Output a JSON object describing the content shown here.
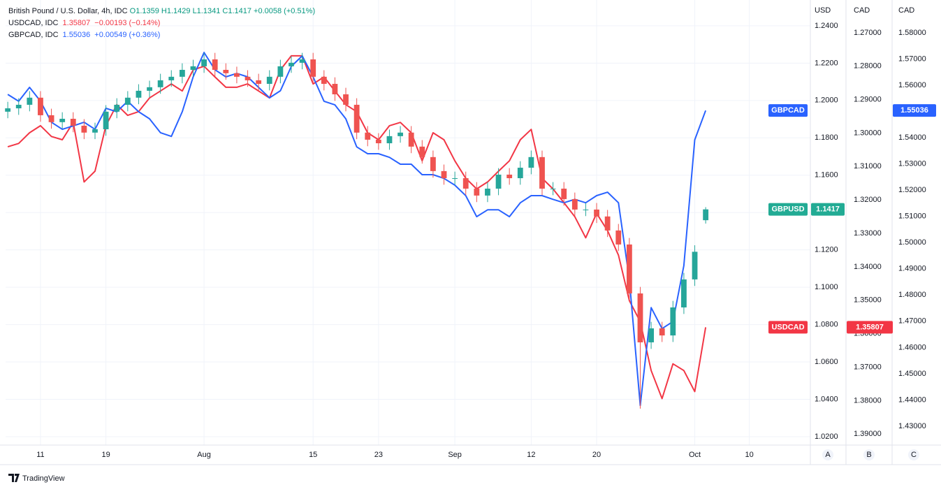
{
  "chart_data": {
    "type": "candlestick",
    "title": "British Pound / U.S. Dollar, 4h, IDC",
    "legend_stats": [
      "O1.1359",
      "H1.1429",
      "L1.1341",
      "C1.1417",
      "+0.0058 (+0.51%)"
    ],
    "symbol": "GBPUSD",
    "up_color": "#26a69a",
    "down_color": "#ef5350",
    "tag_color": "#22ab94",
    "x": [
      -3,
      -2,
      -1,
      0,
      1,
      2,
      3,
      4,
      5,
      6,
      7,
      8,
      9,
      10,
      11,
      12,
      13,
      14,
      15,
      16,
      17,
      18,
      19,
      20,
      21,
      22,
      23,
      24,
      25,
      26,
      27,
      28,
      29,
      30,
      31,
      32,
      33,
      34,
      35,
      36,
      37,
      38,
      39,
      40,
      41,
      42,
      43,
      44,
      45,
      46,
      47,
      48,
      49,
      50,
      51,
      52,
      53,
      54,
      55,
      56,
      57,
      58,
      59,
      60,
      61
    ],
    "open": [
      1.194,
      1.1958,
      1.1977,
      1.2015,
      1.1921,
      1.1884,
      1.1902,
      1.1865,
      1.1828,
      1.1846,
      1.194,
      1.1977,
      1.2015,
      1.2052,
      1.2071,
      1.2108,
      1.2127,
      1.2164,
      1.2183,
      1.222,
      1.2164,
      1.2146,
      1.2127,
      1.2108,
      1.2089,
      1.2127,
      1.2183,
      1.2202,
      1.222,
      1.2127,
      1.2089,
      1.2033,
      1.1977,
      1.1828,
      1.179,
      1.1771,
      1.1809,
      1.1828,
      1.1753,
      1.1697,
      1.1622,
      1.1584,
      1.1584,
      1.1528,
      1.1491,
      1.1528,
      1.1603,
      1.1584,
      1.164,
      1.1697,
      1.1528,
      1.1528,
      1.1472,
      1.1416,
      1.1416,
      1.1379,
      1.1304,
      1.1229,
      1.0967,
      1.0705,
      1.078,
      1.0742,
      1.0892,
      1.1042,
      1.1359
    ],
    "high": [
      1.1993,
      1.2012,
      1.205,
      1.205,
      1.1956,
      1.1937,
      1.1937,
      1.19,
      1.1881,
      1.1975,
      1.2012,
      1.205,
      1.2087,
      1.2106,
      1.2143,
      1.2162,
      1.2199,
      1.2218,
      1.2255,
      1.2255,
      1.2199,
      1.2181,
      1.2162,
      1.2143,
      1.2162,
      1.2218,
      1.2237,
      1.2255,
      1.2255,
      1.2162,
      1.2124,
      1.2068,
      1.2012,
      1.1863,
      1.1825,
      1.1844,
      1.1863,
      1.1863,
      1.1788,
      1.1732,
      1.1657,
      1.1619,
      1.1619,
      1.1563,
      1.1563,
      1.1638,
      1.1638,
      1.1675,
      1.1732,
      1.1732,
      1.1563,
      1.1563,
      1.1507,
      1.1451,
      1.1451,
      1.1414,
      1.1339,
      1.1264,
      1.1002,
      1.0815,
      1.0815,
      1.0927,
      1.1077,
      1.1225,
      1.1429
    ],
    "low": [
      1.1905,
      1.1923,
      1.1942,
      1.1886,
      1.1849,
      1.1849,
      1.183,
      1.1793,
      1.1793,
      1.1811,
      1.1905,
      1.1942,
      1.198,
      1.2017,
      1.2036,
      1.2073,
      1.2092,
      1.2129,
      1.2148,
      1.2129,
      1.2111,
      1.2092,
      1.2073,
      1.2054,
      1.2054,
      1.2092,
      1.2148,
      1.2167,
      1.2092,
      1.2054,
      1.1998,
      1.1942,
      1.1793,
      1.1755,
      1.1736,
      1.1736,
      1.1774,
      1.1718,
      1.1662,
      1.1587,
      1.1549,
      1.1549,
      1.1493,
      1.1456,
      1.1456,
      1.1493,
      1.1549,
      1.1549,
      1.1605,
      1.1493,
      1.1493,
      1.1437,
      1.1381,
      1.1381,
      1.1344,
      1.1269,
      1.1194,
      1.0932,
      1.035,
      1.067,
      1.0707,
      1.0707,
      1.0857,
      1.1007,
      1.1341
    ],
    "close": [
      1.1958,
      1.1977,
      1.2015,
      1.1921,
      1.1884,
      1.1902,
      1.1865,
      1.1828,
      1.1846,
      1.194,
      1.1977,
      1.2015,
      1.2052,
      1.2071,
      1.2108,
      1.2127,
      1.2164,
      1.2183,
      1.222,
      1.2164,
      1.2146,
      1.2127,
      1.2108,
      1.2089,
      1.2127,
      1.2183,
      1.2202,
      1.222,
      1.2127,
      1.2089,
      1.2033,
      1.1977,
      1.1828,
      1.179,
      1.1771,
      1.1809,
      1.1828,
      1.1753,
      1.1697,
      1.1622,
      1.1584,
      1.1584,
      1.1528,
      1.1491,
      1.1528,
      1.1603,
      1.1584,
      1.164,
      1.1697,
      1.1528,
      1.1528,
      1.1472,
      1.1416,
      1.1416,
      1.1379,
      1.1304,
      1.1229,
      1.0967,
      1.0705,
      1.078,
      1.0742,
      1.0892,
      1.1042,
      1.119,
      1.1417
    ],
    "series": [
      {
        "name": "USDCAD",
        "legend": "USDCAD, IDC",
        "change": "−0.00193 (−0.14%)",
        "color": "#f23645",
        "axis": "y2",
        "values": [
          1.3041,
          1.3031,
          1.2999,
          1.2978,
          1.301,
          1.302,
          1.2968,
          1.3146,
          1.3114,
          1.2978,
          1.2915,
          1.2947,
          1.2936,
          1.2895,
          1.2874,
          1.2853,
          1.2874,
          1.2811,
          1.28,
          1.2832,
          1.2863,
          1.2863,
          1.2853,
          1.2874,
          1.2895,
          1.2811,
          1.2769,
          1.2769,
          1.2853,
          1.2832,
          1.2874,
          1.2915,
          1.2936,
          1.2999,
          1.302,
          1.2978,
          1.2968,
          1.2999,
          1.3083,
          1.2999,
          1.302,
          1.3083,
          1.3135,
          1.3167,
          1.3146,
          1.3114,
          1.3083,
          1.302,
          1.2989,
          1.3135,
          1.3167,
          1.3208,
          1.325,
          1.3313,
          1.324,
          1.3292,
          1.3365,
          1.3501,
          1.3564,
          1.371,
          1.3794,
          1.369,
          1.371,
          1.3773,
          1.35807
        ]
      },
      {
        "name": "GBPCAD",
        "legend": "GBPCAD, IDC",
        "change": "+0.00549 (+0.36%)",
        "color": "#2962ff",
        "axis": "y3",
        "values": [
          1.5565,
          1.5539,
          1.5592,
          1.5539,
          1.5459,
          1.5432,
          1.5445,
          1.5459,
          1.5432,
          1.5512,
          1.5499,
          1.5539,
          1.5499,
          1.5472,
          1.5419,
          1.5405,
          1.5499,
          1.5632,
          1.5725,
          1.5659,
          1.5632,
          1.5645,
          1.5632,
          1.5592,
          1.5552,
          1.5579,
          1.5672,
          1.5712,
          1.5632,
          1.5539,
          1.5525,
          1.5472,
          1.5365,
          1.5339,
          1.5339,
          1.5325,
          1.5299,
          1.5299,
          1.5259,
          1.5259,
          1.5245,
          1.5219,
          1.5179,
          1.5099,
          1.5125,
          1.5125,
          1.5099,
          1.5152,
          1.5179,
          1.5179,
          1.5165,
          1.5152,
          1.5165,
          1.5152,
          1.5179,
          1.5192,
          1.5152,
          1.4859,
          1.4379,
          1.4752,
          1.4672,
          1.4699,
          1.4912,
          1.5392,
          1.55036
        ]
      }
    ],
    "xlim": [
      -3.2,
      70.6
    ],
    "xticks": [
      {
        "value": 0,
        "label": "11"
      },
      {
        "value": 6,
        "label": "19"
      },
      {
        "value": 15,
        "label": "Aug"
      },
      {
        "value": 25,
        "label": "15"
      },
      {
        "value": 31,
        "label": "23"
      },
      {
        "value": 38,
        "label": "Sep"
      },
      {
        "value": 45,
        "label": "12"
      },
      {
        "value": 51,
        "label": "20"
      },
      {
        "value": 60,
        "label": "Oct"
      },
      {
        "value": 65,
        "label": "10"
      }
    ],
    "ylim": [
      1.0155,
      1.2538
    ],
    "yticks": [
      {
        "value": 1.02,
        "label": "1.0200"
      },
      {
        "value": 1.04,
        "label": "1.0400"
      },
      {
        "value": 1.06,
        "label": "1.0600"
      },
      {
        "value": 1.08,
        "label": "1.0800"
      },
      {
        "value": 1.1,
        "label": "1.1000"
      },
      {
        "value": 1.12,
        "label": "1.1200"
      },
      {
        "value": 1.14,
        "label": "1.1400"
      },
      {
        "value": 1.16,
        "label": "1.1600"
      },
      {
        "value": 1.18,
        "label": "1.1800"
      },
      {
        "value": 1.2,
        "label": "1.2000"
      },
      {
        "value": 1.22,
        "label": "1.2200"
      },
      {
        "value": 1.24,
        "label": "1.2400"
      }
    ],
    "y2lim": [
      1.3933,
      1.2602
    ],
    "y2ticks": [
      {
        "value": 1.27,
        "label": "1.27000"
      },
      {
        "value": 1.28,
        "label": "1.28000"
      },
      {
        "value": 1.29,
        "label": "1.29000"
      },
      {
        "value": 1.3,
        "label": "1.30000"
      },
      {
        "value": 1.31,
        "label": "1.31000"
      },
      {
        "value": 1.32,
        "label": "1.32000"
      },
      {
        "value": 1.33,
        "label": "1.33000"
      },
      {
        "value": 1.34,
        "label": "1.34000"
      },
      {
        "value": 1.35,
        "label": "1.35000"
      },
      {
        "value": 1.36,
        "label": "1.36000"
      },
      {
        "value": 1.37,
        "label": "1.37000"
      },
      {
        "value": 1.38,
        "label": "1.38000"
      },
      {
        "value": 1.39,
        "label": "1.39000"
      }
    ],
    "y3lim": [
      1.4228,
      1.5925
    ],
    "y3ticks": [
      {
        "value": 1.43,
        "label": "1.43000"
      },
      {
        "value": 1.44,
        "label": "1.44000"
      },
      {
        "value": 1.45,
        "label": "1.45000"
      },
      {
        "value": 1.46,
        "label": "1.46000"
      },
      {
        "value": 1.47,
        "label": "1.47000"
      },
      {
        "value": 1.48,
        "label": "1.48000"
      },
      {
        "value": 1.49,
        "label": "1.49000"
      },
      {
        "value": 1.5,
        "label": "1.50000"
      },
      {
        "value": 1.51,
        "label": "1.51000"
      },
      {
        "value": 1.52,
        "label": "1.52000"
      },
      {
        "value": 1.53,
        "label": "1.53000"
      },
      {
        "value": 1.54,
        "label": "1.54000"
      },
      {
        "value": 1.55,
        "label": "1.55000"
      },
      {
        "value": 1.56,
        "label": "1.56000"
      },
      {
        "value": 1.57,
        "label": "1.57000"
      },
      {
        "value": 1.58,
        "label": "1.58000"
      }
    ],
    "axis_units": [
      "USD",
      "CAD",
      "CAD"
    ],
    "axis_letters": [
      "A",
      "B",
      "C"
    ],
    "grid": true,
    "brand": "TradingView"
  }
}
